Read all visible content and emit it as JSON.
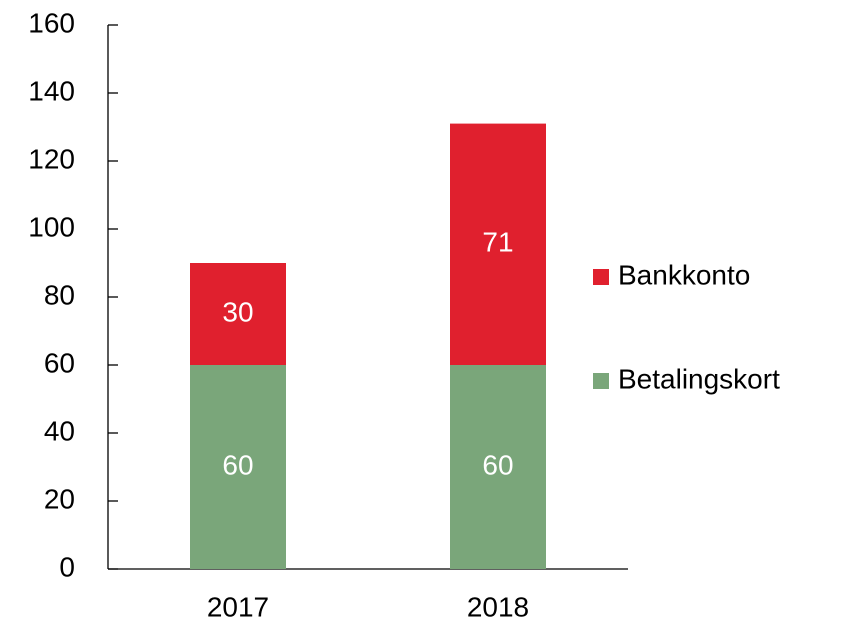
{
  "chart_data": {
    "type": "stacked_bar",
    "categories": [
      "2017",
      "2018"
    ],
    "series": [
      {
        "name": "Betalingskort",
        "color": "#7aa67a",
        "values": [
          60,
          60
        ]
      },
      {
        "name": "Bankkonto",
        "color": "#e0202e",
        "values": [
          30,
          71
        ]
      }
    ],
    "ylim": [
      0,
      160
    ],
    "yticks": [
      0,
      20,
      40,
      60,
      80,
      100,
      120,
      140,
      160
    ],
    "legend": "right"
  }
}
